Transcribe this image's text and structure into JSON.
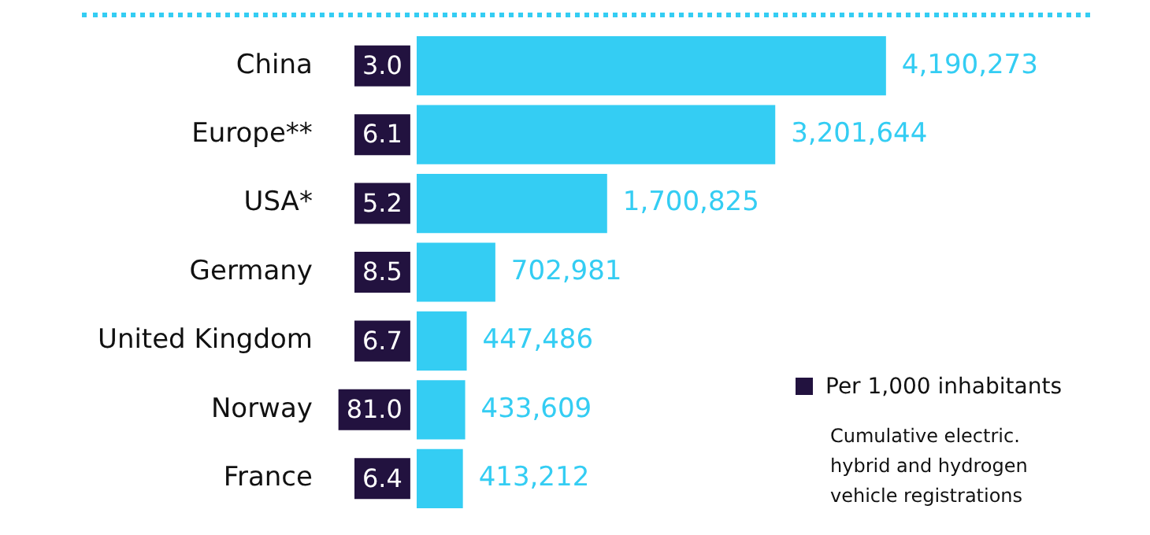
{
  "chart_data": {
    "type": "bar",
    "orientation": "horizontal",
    "categories": [
      "China",
      "Europe**",
      "USA*",
      "Germany",
      "United Kingdom",
      "Norway",
      "France"
    ],
    "series": [
      {
        "color": "#34cdf3",
        "values": [
          4190273,
          3201644,
          1700825,
          702981,
          447486,
          433609,
          413212
        ],
        "value_labels": [
          "4,190,273",
          "3,201,644",
          "1,700,825",
          "702,981",
          "447,486",
          "433,609",
          "413,212"
        ]
      }
    ],
    "annotations": [
      "3.0",
      "6.1",
      "5.2",
      "8.5",
      "6.7",
      "81.0",
      "6.4",
      "Per 1,000 inhabitants",
      "Cumulative electric. hybrid and hydrogen vehicle registrations"
    ],
    "legend": false,
    "tick_labels": "y"
  }
}
